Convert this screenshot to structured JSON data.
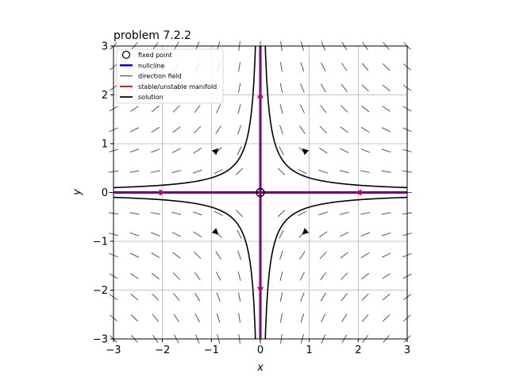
{
  "chart_data": {
    "type": "line",
    "title": "problem 7.2.2",
    "xlabel": "x",
    "ylabel": "y",
    "xlim": [
      -3,
      3
    ],
    "ylim": [
      -3,
      3
    ],
    "xticks": [
      "−3",
      "−2",
      "−1",
      "0",
      "1",
      "2",
      "3"
    ],
    "yticks": [
      "−3",
      "−2",
      "−1",
      "0",
      "1",
      "2",
      "3"
    ],
    "grid": true,
    "legend_position": "top-left",
    "legend": [
      {
        "key": "fixed_point",
        "label": "fixed point",
        "color": "#000000",
        "marker": "open-circle"
      },
      {
        "key": "nullcline",
        "label": "nullcline",
        "color": "#0000ff",
        "marker": "line"
      },
      {
        "key": "direction_field",
        "label": "direction field",
        "color": "#555555",
        "marker": "line"
      },
      {
        "key": "manifold",
        "label": "stable/unstable manifold",
        "color": "#e00000",
        "marker": "line"
      },
      {
        "key": "solution",
        "label": "solution",
        "color": "#000000",
        "marker": "line"
      }
    ],
    "fixed_points": [
      {
        "x": 0,
        "y": 0
      }
    ],
    "manifolds": [
      {
        "axis": "x",
        "direction": "toward-origin",
        "arrows_at": [
          -2,
          2
        ]
      },
      {
        "axis": "y",
        "direction": "away-from-origin",
        "arrows_at": [
          2,
          -2
        ]
      }
    ],
    "solutions": [
      {
        "quadrant": "I",
        "curve": "xy=0.3",
        "arrow_at": {
          "x": 0.9,
          "y": 0.86
        }
      },
      {
        "quadrant": "II",
        "curve": "xy=-0.3",
        "arrow_at": {
          "x": -0.9,
          "y": 0.86
        }
      },
      {
        "quadrant": "III",
        "curve": "xy=0.3",
        "arrow_at": {
          "x": -0.9,
          "y": -0.82
        }
      },
      {
        "quadrant": "IV",
        "curve": "xy=-0.3",
        "arrow_at": {
          "x": 0.9,
          "y": -0.82
        }
      }
    ],
    "direction_field": {
      "system": "dx/dt = -x, dy/dt = y",
      "grid_points": 15
    },
    "colors": {
      "manifold": "#e00000",
      "nullcline": "#0000ff",
      "overlap": "#c0007a",
      "solution": "#000000",
      "direction_field": "#555555",
      "grid": "#b0b0b0"
    }
  }
}
